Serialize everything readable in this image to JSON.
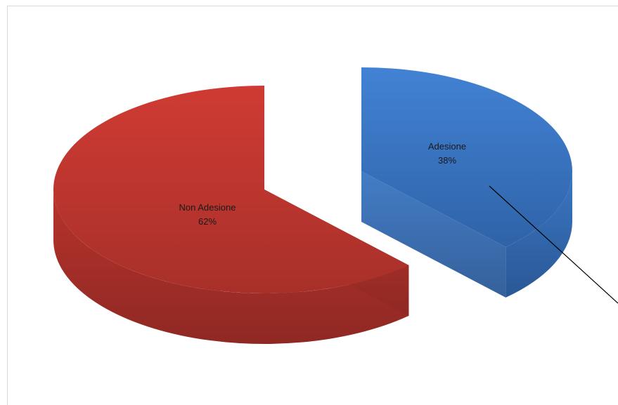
{
  "chart_data": {
    "type": "pie",
    "style": "3d-exploded",
    "title": "",
    "legend": "none",
    "slices": [
      {
        "label": "Non Adesione",
        "value": 62,
        "value_label": "62%",
        "color": "#c0392f"
      },
      {
        "label": "Adesione",
        "value": 38,
        "value_label": "38%",
        "color": "#3b7ac6"
      }
    ]
  }
}
